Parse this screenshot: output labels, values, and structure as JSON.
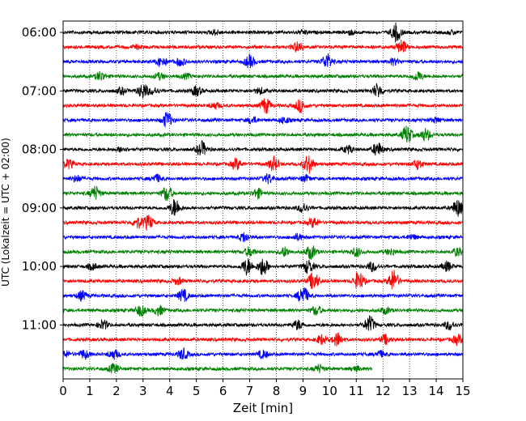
{
  "chart_data": {
    "type": "line",
    "title": "",
    "xlabel": "Zeit  [min]",
    "ylabel": "UTC (Lokalzeit = UTC + 02:00)",
    "xlim": [
      0,
      15
    ],
    "x_ticks": [
      "0",
      "1",
      "2",
      "3",
      "4",
      "5",
      "6",
      "7",
      "8",
      "9",
      "10",
      "11",
      "12",
      "13",
      "14",
      "15"
    ],
    "y_tick_labels": [
      "06:00",
      "07:00",
      "08:00",
      "09:00",
      "10:00",
      "11:00"
    ],
    "grid": "vertical dotted",
    "color_cycle": [
      "#000000",
      "#ff0000",
      "#0000ff",
      "#008000"
    ],
    "traces": [
      {
        "time": "06:00",
        "color": "black",
        "events": [
          [
            5.7,
            0.15
          ],
          [
            9.0,
            0.12
          ],
          [
            10.8,
            0.15
          ],
          [
            12.5,
            0.6
          ],
          [
            14.6,
            0.12
          ]
        ]
      },
      {
        "time": "06:15",
        "color": "red",
        "events": [
          [
            2.8,
            0.1
          ],
          [
            8.8,
            0.35
          ],
          [
            12.7,
            0.45
          ]
        ]
      },
      {
        "time": "06:30",
        "color": "blue",
        "events": [
          [
            3.7,
            0.35
          ],
          [
            4.4,
            0.25
          ],
          [
            7.0,
            0.4
          ],
          [
            9.9,
            0.5
          ],
          [
            12.4,
            0.2
          ]
        ]
      },
      {
        "time": "06:45",
        "color": "green",
        "events": [
          [
            1.4,
            0.3
          ],
          [
            3.6,
            0.2
          ],
          [
            4.6,
            0.15
          ],
          [
            13.3,
            0.3
          ]
        ]
      },
      {
        "time": "07:00",
        "color": "black",
        "events": [
          [
            2.2,
            0.2
          ],
          [
            3.0,
            0.5
          ],
          [
            3.4,
            0.2
          ],
          [
            5.0,
            0.3
          ],
          [
            7.4,
            0.2
          ],
          [
            11.8,
            0.45
          ]
        ]
      },
      {
        "time": "07:15",
        "color": "red",
        "events": [
          [
            5.7,
            0.2
          ],
          [
            7.6,
            0.5
          ],
          [
            8.9,
            0.4
          ]
        ]
      },
      {
        "time": "07:30",
        "color": "blue",
        "events": [
          [
            3.9,
            0.5
          ],
          [
            7.1,
            0.2
          ],
          [
            8.3,
            0.2
          ],
          [
            14.0,
            0.15
          ]
        ]
      },
      {
        "time": "07:45",
        "color": "green",
        "events": [
          [
            12.9,
            0.6
          ],
          [
            13.6,
            0.4
          ]
        ]
      },
      {
        "time": "08:00",
        "color": "black",
        "events": [
          [
            2.2,
            0.15
          ],
          [
            5.2,
            0.5
          ],
          [
            10.7,
            0.25
          ],
          [
            11.8,
            0.45
          ]
        ]
      },
      {
        "time": "08:15",
        "color": "red",
        "events": [
          [
            0.2,
            0.3
          ],
          [
            6.5,
            0.35
          ],
          [
            7.9,
            0.45
          ],
          [
            9.2,
            0.6
          ],
          [
            13.3,
            0.3
          ]
        ]
      },
      {
        "time": "08:30",
        "color": "blue",
        "events": [
          [
            0.5,
            0.2
          ],
          [
            3.5,
            0.25
          ],
          [
            7.7,
            0.3
          ],
          [
            9.1,
            0.2
          ]
        ]
      },
      {
        "time": "08:45",
        "color": "green",
        "events": [
          [
            1.2,
            0.45
          ],
          [
            3.9,
            0.5
          ],
          [
            7.3,
            0.3
          ]
        ]
      },
      {
        "time": "09:00",
        "color": "black",
        "events": [
          [
            4.2,
            0.6
          ],
          [
            9.0,
            0.3
          ],
          [
            14.8,
            0.55
          ]
        ]
      },
      {
        "time": "09:15",
        "color": "red",
        "events": [
          [
            2.8,
            0.35
          ],
          [
            3.2,
            0.45
          ],
          [
            9.4,
            0.3
          ]
        ]
      },
      {
        "time": "09:30",
        "color": "blue",
        "events": [
          [
            6.8,
            0.3
          ],
          [
            8.8,
            0.2
          ],
          [
            13.1,
            0.15
          ]
        ]
      },
      {
        "time": "09:45",
        "color": "green",
        "events": [
          [
            7.0,
            0.3
          ],
          [
            8.3,
            0.3
          ],
          [
            9.3,
            0.45
          ],
          [
            11.0,
            0.3
          ],
          [
            12.3,
            0.2
          ],
          [
            14.8,
            0.25
          ]
        ]
      },
      {
        "time": "10:00",
        "color": "black",
        "events": [
          [
            1.1,
            0.2
          ],
          [
            6.9,
            0.55
          ],
          [
            7.5,
            0.6
          ],
          [
            9.2,
            0.45
          ],
          [
            11.6,
            0.3
          ],
          [
            14.4,
            0.3
          ]
        ]
      },
      {
        "time": "10:15",
        "color": "red",
        "events": [
          [
            4.3,
            0.2
          ],
          [
            9.4,
            0.6
          ],
          [
            11.1,
            0.6
          ],
          [
            12.4,
            0.7
          ]
        ]
      },
      {
        "time": "10:30",
        "color": "blue",
        "events": [
          [
            0.7,
            0.3
          ],
          [
            4.5,
            0.4
          ],
          [
            9.0,
            0.65
          ]
        ]
      },
      {
        "time": "10:45",
        "color": "green",
        "events": [
          [
            2.9,
            0.35
          ],
          [
            3.6,
            0.3
          ],
          [
            9.5,
            0.3
          ],
          [
            12.1,
            0.2
          ]
        ]
      },
      {
        "time": "11:00",
        "color": "black",
        "events": [
          [
            1.5,
            0.3
          ],
          [
            8.8,
            0.3
          ],
          [
            11.5,
            0.55
          ],
          [
            14.5,
            0.3
          ]
        ]
      },
      {
        "time": "11:15",
        "color": "red",
        "events": [
          [
            9.7,
            0.3
          ],
          [
            10.3,
            0.45
          ],
          [
            12.1,
            0.3
          ],
          [
            14.8,
            0.3
          ]
        ]
      },
      {
        "time": "11:30",
        "color": "blue",
        "events": [
          [
            0.1,
            0.2
          ],
          [
            0.8,
            0.3
          ],
          [
            1.9,
            0.3
          ],
          [
            4.5,
            0.35
          ],
          [
            7.5,
            0.25
          ],
          [
            11.9,
            0.2
          ]
        ]
      },
      {
        "time": "11:45",
        "color": "green",
        "events": [
          [
            1.9,
            0.3
          ],
          [
            9.6,
            0.25
          ],
          [
            11.0,
            0.15
          ]
        ],
        "end": 11.6
      }
    ]
  }
}
